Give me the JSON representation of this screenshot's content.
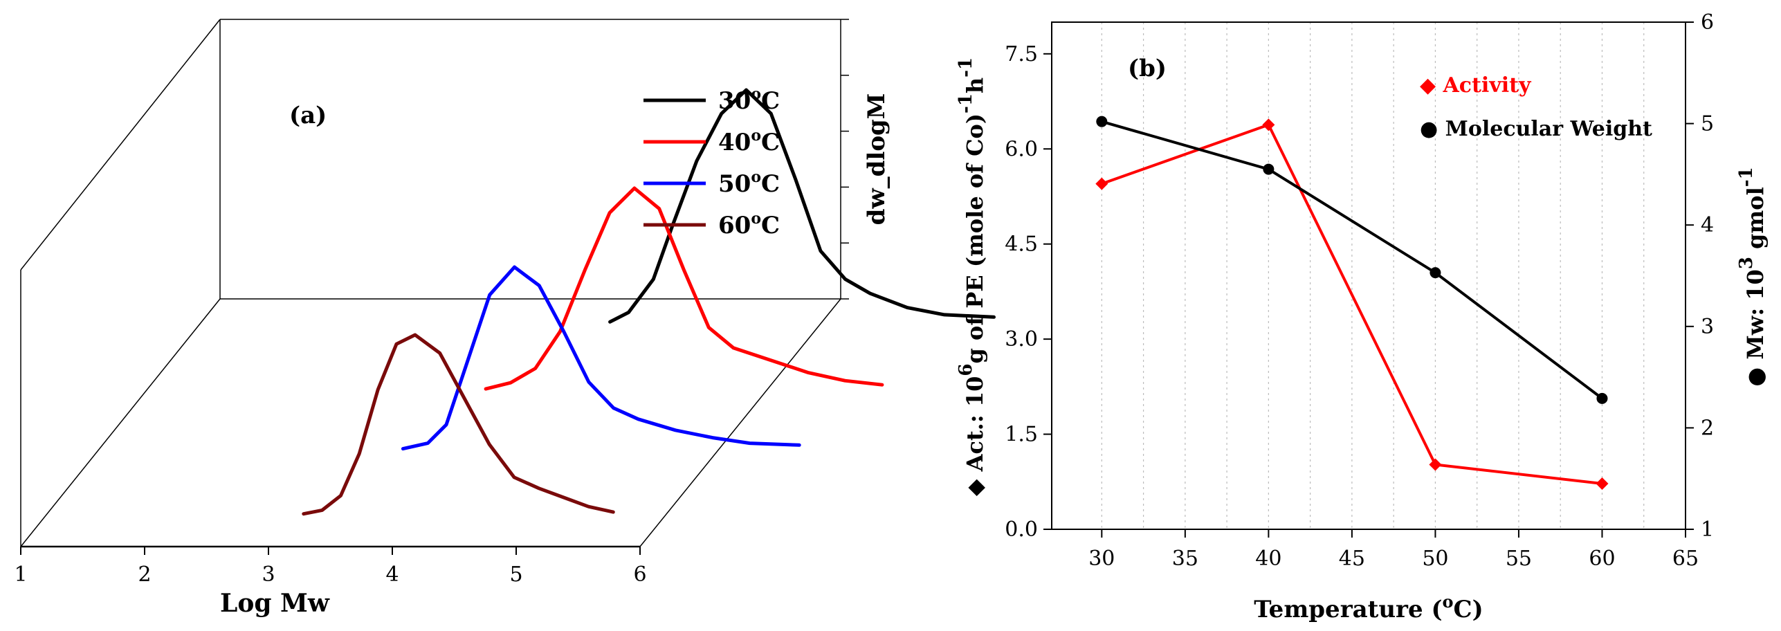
{
  "chart_data": [
    {
      "panel": "(a)",
      "type": "line",
      "style": "3d-waterfall",
      "xlabel": "Log Mw",
      "zlabel": "dw_dlogM",
      "xlim": [
        1,
        6
      ],
      "xticks": [
        "1",
        "2",
        "3",
        "4",
        "5",
        "6"
      ],
      "series": [
        {
          "name": "30",
          "unit": "C",
          "color": "#000000",
          "x": [
            3.4,
            3.55,
            3.75,
            3.9,
            4.1,
            4.3,
            4.5,
            4.7,
            4.9,
            5.1,
            5.3,
            5.5,
            5.8,
            6.1,
            6.5
          ],
          "y": [
            0.02,
            0.06,
            0.2,
            0.42,
            0.7,
            0.9,
            1.0,
            0.9,
            0.62,
            0.32,
            0.2,
            0.14,
            0.08,
            0.05,
            0.04
          ]
        },
        {
          "name": "40",
          "unit": "C",
          "color": "#ff0000",
          "x": [
            2.9,
            3.1,
            3.3,
            3.5,
            3.7,
            3.9,
            4.1,
            4.3,
            4.5,
            4.7,
            4.9,
            5.2,
            5.5,
            5.8,
            6.1
          ],
          "y": [
            0.02,
            0.05,
            0.12,
            0.3,
            0.6,
            0.88,
            1.0,
            0.9,
            0.6,
            0.32,
            0.22,
            0.16,
            0.1,
            0.06,
            0.04
          ]
        },
        {
          "name": "50",
          "unit": "C",
          "color": "#0000ff",
          "x": [
            2.6,
            2.8,
            2.95,
            3.1,
            3.3,
            3.5,
            3.7,
            3.9,
            4.1,
            4.3,
            4.5,
            4.8,
            5.1,
            5.4,
            5.8
          ],
          "y": [
            0.02,
            0.05,
            0.15,
            0.45,
            0.85,
            1.0,
            0.9,
            0.65,
            0.38,
            0.24,
            0.18,
            0.12,
            0.08,
            0.05,
            0.04
          ]
        },
        {
          "name": "60",
          "unit": "C",
          "color": "#7a0a0a",
          "x": [
            2.2,
            2.35,
            2.5,
            2.65,
            2.8,
            2.95,
            3.1,
            3.3,
            3.5,
            3.7,
            3.9,
            4.1,
            4.3,
            4.5,
            4.7
          ],
          "y": [
            0.02,
            0.04,
            0.12,
            0.35,
            0.7,
            0.95,
            1.0,
            0.9,
            0.65,
            0.4,
            0.22,
            0.16,
            0.11,
            0.06,
            0.03
          ]
        }
      ],
      "legend_position": "top-right"
    },
    {
      "panel": "(b)",
      "type": "line",
      "xlabel_parts": [
        "Temperature (",
        "o",
        "C)"
      ],
      "ylabel_left_parts": [
        "◆ Act.: 10",
        "6",
        "g of PE (mole of Co)",
        "-1",
        "h",
        "-1"
      ],
      "ylabel_right_parts": [
        "● Mw: 10",
        "3",
        " gmol",
        "-1"
      ],
      "xlim": [
        27,
        65
      ],
      "xticks": [
        "30",
        "35",
        "40",
        "45",
        "50",
        "55",
        "60",
        "65"
      ],
      "ylim_left": [
        0,
        8.0
      ],
      "yticks_left": [
        "0.0",
        "1.5",
        "3.0",
        "4.5",
        "6.0",
        "7.5"
      ],
      "ylim_right": [
        1,
        6
      ],
      "yticks_right": [
        "1",
        "2",
        "3",
        "4",
        "5",
        "6"
      ],
      "grid": "vertical-dotted",
      "legend_position": "top-right",
      "series": [
        {
          "name": "Activity",
          "marker_glyph": "◆",
          "axis": "left",
          "color": "#ff0000",
          "x": [
            30,
            40,
            50,
            60
          ],
          "y": [
            5.45,
            6.38,
            1.02,
            0.72
          ]
        },
        {
          "name": "Molecular Weight",
          "marker_glyph": "●",
          "axis": "right",
          "color": "#000000",
          "x": [
            30,
            40,
            50,
            60
          ],
          "y": [
            5.02,
            4.55,
            3.53,
            2.29
          ]
        }
      ]
    }
  ]
}
